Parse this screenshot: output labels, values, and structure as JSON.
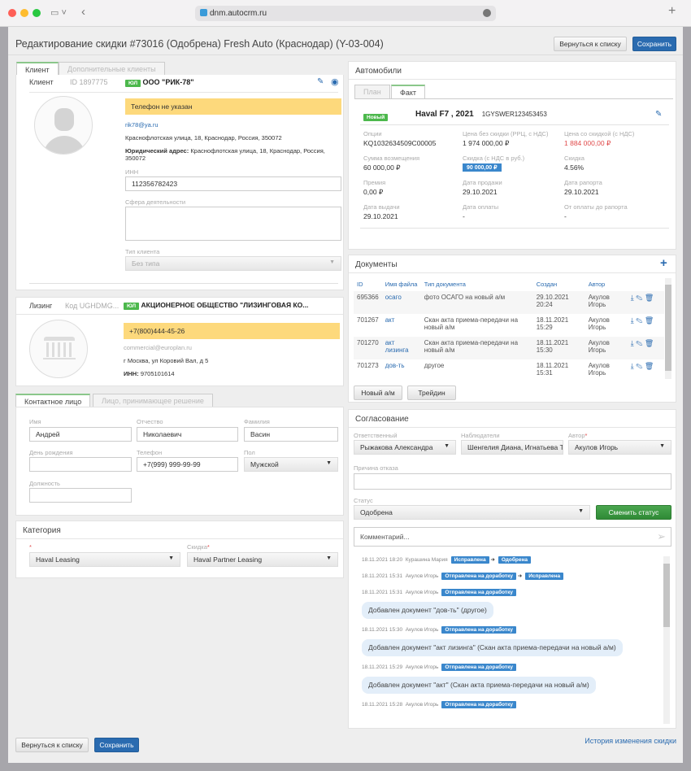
{
  "browser": {
    "url": "dnm.autocrm.ru"
  },
  "header": {
    "title": "Редактирование скидки #73016 (Одобрена) Fresh Auto (Краснодар) (Y-03-004)",
    "back_label": "Вернуться к списку",
    "save_label": "Сохранить"
  },
  "client": {
    "tabs": [
      "Клиент",
      "Дополнительные клиенты"
    ],
    "label": "Клиент",
    "id": "ID 1897775",
    "type_badge": "ЮЛ",
    "name": "ООО \"РИК-78\"",
    "phone_warning": "Телефон не указан",
    "email": "rik78@ya.ru",
    "address": "Краснофлотская улица, 18, Краснодар, Россия, 350072",
    "legal_address_label": "Юридический адрес:",
    "legal_address": "Краснофлотская улица, 18, Краснодар, Россия, 350072",
    "inn_label": "ИНН",
    "inn": "112356782423",
    "sphere_label": "Сфера деятельности",
    "sphere": "",
    "client_type_label": "Тип клиента",
    "client_type": "Без типа"
  },
  "leasing": {
    "label": "Лизинг",
    "code": "Код UGHDMG...",
    "type_badge": "ЮЛ",
    "name": "АКЦИОНЕРНОЕ ОБЩЕСТВО \"ЛИЗИНГОВАЯ КО...",
    "phone": "+7(800)444-45-26",
    "email": "commercial@europlan.ru",
    "address": "г Москва, ул Коровий Вал, д 5",
    "inn_label": "ИНН:",
    "inn": "9705101614"
  },
  "contact": {
    "tabs": [
      "Контактное лицо",
      "Лицо, принимающее решение"
    ],
    "first_name_label": "Имя",
    "first_name": "Андрей",
    "patronymic_label": "Отчество",
    "patronymic": "Николаевич",
    "last_name_label": "Фамилия",
    "last_name": "Васин",
    "birthday_label": "День рождения",
    "birthday": "",
    "phone_label": "Телефон",
    "phone": "+7(999) 999-99-99",
    "gender_label": "Пол",
    "gender": "Мужской",
    "position_label": "Должность",
    "position": ""
  },
  "category": {
    "title": "Категория",
    "required_mark": "*",
    "category": "Haval Leasing",
    "discount_label": "Скидка",
    "discount": "Haval Partner Leasing"
  },
  "cars": {
    "title": "Автомобили",
    "tabs": [
      "План",
      "Факт"
    ],
    "badge": "Новый",
    "model": "Haval F7 , 2021",
    "vin": "1GYSWER123453453",
    "fields": [
      {
        "label": "Опции",
        "value": "KQ1032634509C00005"
      },
      {
        "label": "Цена без скидки (РРЦ, с НДС)",
        "value": "1 974 000,00 ₽"
      },
      {
        "label": "Цена со скидкой (с НДС)",
        "value": "1 884 000,00 ₽",
        "color": "#e04b4b"
      },
      {
        "label": "Сумма возмещения",
        "value": "60 000,00 ₽"
      },
      {
        "label": "Скидка (с НДС в руб.)",
        "value": "90 000,00 ₽",
        "badge": true
      },
      {
        "label": "Скидка",
        "value": "4.56%"
      },
      {
        "label": "Премия",
        "value": "0,00 ₽"
      },
      {
        "label": "Дата продажи",
        "value": "29.10.2021"
      },
      {
        "label": "Дата рапорта",
        "value": "29.10.2021"
      },
      {
        "label": "Дата выдачи",
        "value": "29.10.2021"
      },
      {
        "label": "Дата оплаты",
        "value": "-"
      },
      {
        "label": "От оплаты до рапорта",
        "value": "-"
      }
    ]
  },
  "documents": {
    "title": "Документы",
    "columns": [
      "ID",
      "Имя файла",
      "Тип документа",
      "Создан",
      "Автор"
    ],
    "rows": [
      {
        "id": "695366",
        "file": "осаго",
        "type": "фото ОСАГО на новый а/м",
        "created": "29.10.2021 20:24",
        "author": "Акулов Игорь"
      },
      {
        "id": "701267",
        "file": "акт",
        "type": "Скан акта приема-передачи на новый а/м",
        "created": "18.11.2021 15:29",
        "author": "Акулов Игорь"
      },
      {
        "id": "701270",
        "file": "акт лизинга",
        "type": "Скан акта приема-передачи на новый а/м",
        "created": "18.11.2021 15:30",
        "author": "Акулов Игорь"
      },
      {
        "id": "701273",
        "file": "дов-ть",
        "type": "другое",
        "created": "18.11.2021 15:31",
        "author": "Акулов Игорь"
      }
    ],
    "buttons": [
      "Новый а/м",
      "Трейдин"
    ]
  },
  "approval": {
    "title": "Согласование",
    "responsible_label": "Ответственный",
    "responsible": "Рыжакова Александра",
    "observers_label": "Наблюдатели",
    "observers": "Шенгелия Диана, Игнатьева Т",
    "author_label": "Автор",
    "author": "Акулов Игорь",
    "reason_label": "Причина отказа",
    "reason": "",
    "status_label": "Статус",
    "status": "Одобрена",
    "change_status": "Сменить статус",
    "comment_placeholder": "Комментарий...",
    "timeline": [
      {
        "time": "18.11.2021 18:20",
        "user": "Курашина Мария",
        "from": "Исправлена",
        "to": "Одобрена"
      },
      {
        "time": "18.11.2021 15:31",
        "user": "Акулов Игорь",
        "from": "Отправлена на доработку",
        "to": "Исправлена"
      },
      {
        "time": "18.11.2021 15:31",
        "user": "Акулов Игорь",
        "from": "Отправлена на доработку",
        "message": "Добавлен документ \"дов-ть\" (другое)"
      },
      {
        "time": "18.11.2021 15:30",
        "user": "Акулов Игорь",
        "from": "Отправлена на доработку",
        "message": "Добавлен документ \"акт лизинга\" (Скан акта приема-передачи на новый а/м)"
      },
      {
        "time": "18.11.2021 15:29",
        "user": "Акулов Игорь",
        "from": "Отправлена на доработку",
        "message": "Добавлен документ \"акт\" (Скан акта приема-передачи на новый а/м)"
      },
      {
        "time": "18.11.2021 15:28",
        "user": "Акулов Игорь",
        "from": "Отправлена на доработку"
      }
    ]
  },
  "footer": {
    "back_label": "Вернуться к списку",
    "save_label": "Сохранить",
    "history_link": "История изменения скидки"
  },
  "colors": {
    "primary": "#2a6bb0",
    "success": "#3f9a45",
    "warning": "#fdd97c",
    "badge_green": "#4cb84c",
    "badge_blue": "#3a87cc"
  }
}
